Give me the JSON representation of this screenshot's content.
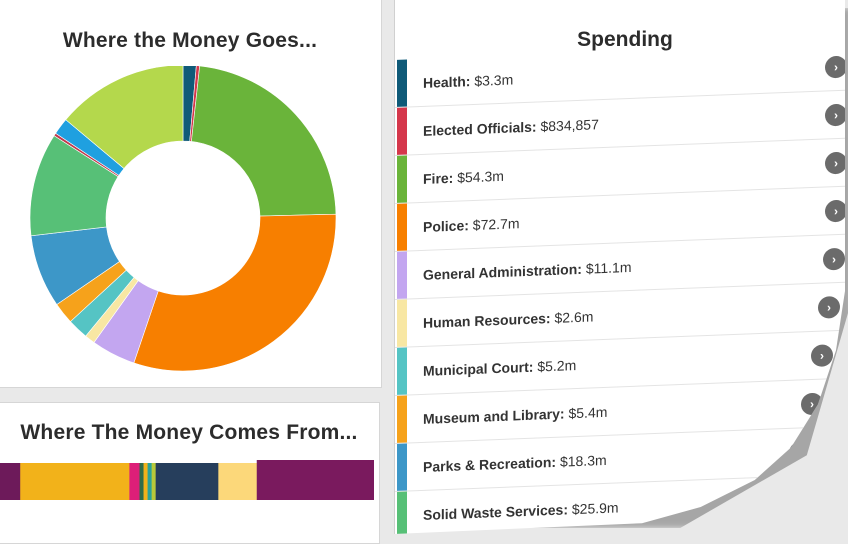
{
  "goes": {
    "title": "Where the Money Goes..."
  },
  "comes": {
    "title": "Where The Money Comes From..."
  },
  "spending": {
    "title": "Spending",
    "arrow_glyph": "›",
    "items": [
      {
        "label": "Health:",
        "value": "$3.3m",
        "color": "#0f5a78"
      },
      {
        "label": "Elected Officials:",
        "value": "$834,857",
        "color": "#d5374b"
      },
      {
        "label": "Fire:",
        "value": "$54.3m",
        "color": "#6ab43a"
      },
      {
        "label": "Police:",
        "value": "$72.7m",
        "color": "#f77f00"
      },
      {
        "label": "General Administration:",
        "value": "$11.1m",
        "color": "#c3a6f0"
      },
      {
        "label": "Human Resources:",
        "value": "$2.6m",
        "color": "#f8e7a3"
      },
      {
        "label": "Municipal Court:",
        "value": "$5.2m",
        "color": "#55c4c4"
      },
      {
        "label": "Museum and Library:",
        "value": "$5.4m",
        "color": "#f6a21b"
      },
      {
        "label": "Parks & Recreation:",
        "value": "$18.3m",
        "color": "#3d97c8"
      },
      {
        "label": "Solid Waste Services:",
        "value": "$25.9m",
        "color": "#57c077"
      }
    ]
  },
  "donut_segments": [
    {
      "name": "Health",
      "value": 3.3,
      "color": "#0f5a78"
    },
    {
      "name": "Elected Officials",
      "value": 0.83,
      "color": "#d5374b"
    },
    {
      "name": "Fire",
      "value": 54.3,
      "color": "#6ab43a"
    },
    {
      "name": "Police",
      "value": 72.7,
      "color": "#f77f00"
    },
    {
      "name": "General Administration",
      "value": 11.1,
      "color": "#c3a6f0"
    },
    {
      "name": "Human Resources",
      "value": 2.6,
      "color": "#f8e7a3"
    },
    {
      "name": "Municipal Court",
      "value": 5.2,
      "color": "#55c4c4"
    },
    {
      "name": "Museum and Library",
      "value": 5.4,
      "color": "#f6a21b"
    },
    {
      "name": "Parks & Recreation",
      "value": 18.3,
      "color": "#3d97c8"
    },
    {
      "name": "Solid Waste Services",
      "value": 25.9,
      "color": "#57c077"
    },
    {
      "name": "unlabeled-1",
      "value": 0.7,
      "color": "#c0394b"
    },
    {
      "name": "unlabeled-2",
      "value": 4.2,
      "color": "#1fa0e0"
    },
    {
      "name": "unlabeled-3",
      "value": 33.0,
      "color": "#b4d84c"
    }
  ],
  "revenue_segments": [
    {
      "value": 20,
      "color": "#6d1a5a"
    },
    {
      "value": 108,
      "color": "#f2b21a"
    },
    {
      "value": 10,
      "color": "#dd1f78"
    },
    {
      "value": 4,
      "color": "#2f6d4b"
    },
    {
      "value": 4,
      "color": "#f2b21a"
    },
    {
      "value": 4,
      "color": "#2aa39a"
    },
    {
      "value": 4,
      "color": "#b8c93a"
    },
    {
      "value": 62,
      "color": "#263e5c"
    },
    {
      "value": 38,
      "color": "#fcd87a"
    },
    {
      "value": 116,
      "color": "#7a1a5e"
    }
  ]
}
